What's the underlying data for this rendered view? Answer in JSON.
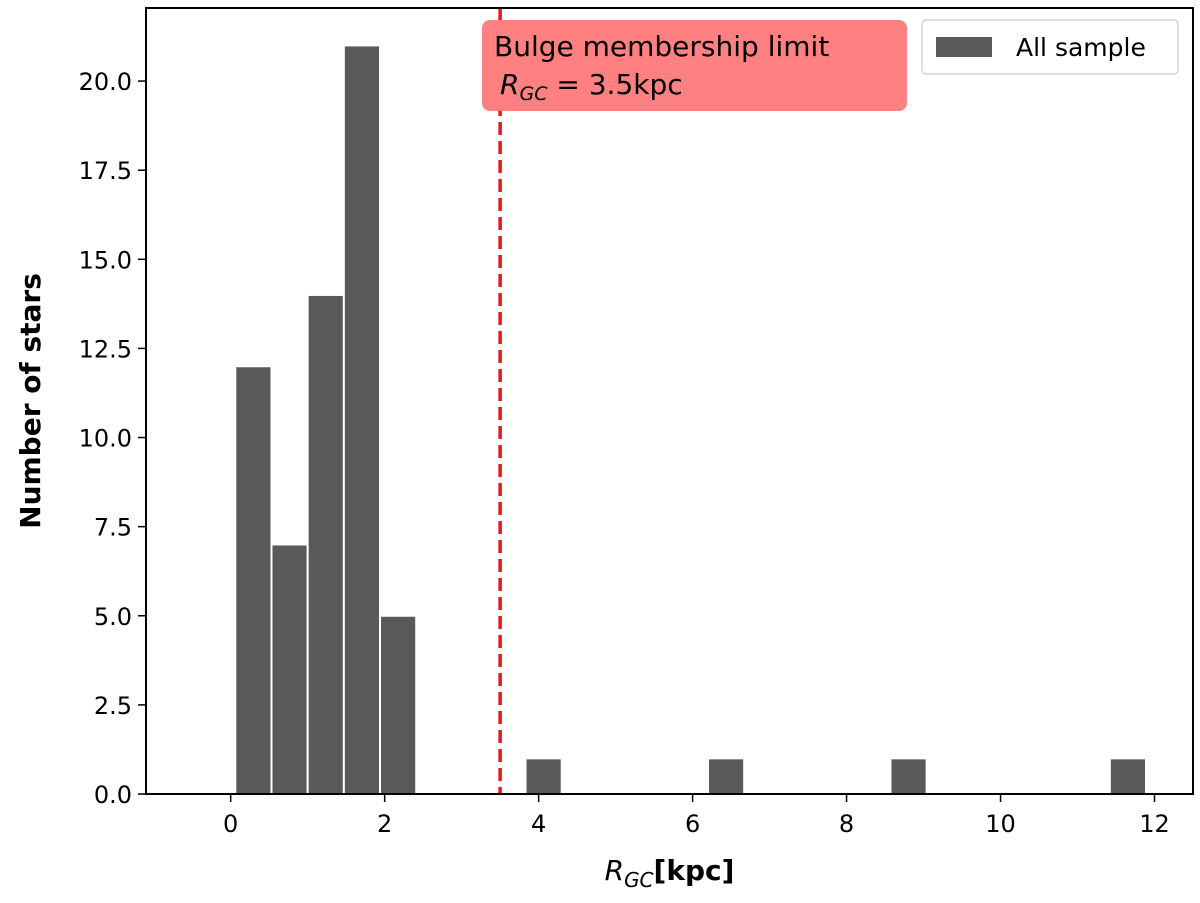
{
  "chart_data": {
    "type": "bar",
    "xlabel_main": "R",
    "xlabel_sub": "GC",
    "xlabel_unit": "[kpc]",
    "ylabel": "Number of stars",
    "xlim": [
      -1.1,
      12.5
    ],
    "ylim": [
      0,
      22.05
    ],
    "xticks": [
      0,
      2,
      4,
      6,
      8,
      10,
      12
    ],
    "yticks": [
      0.0,
      2.5,
      5.0,
      7.5,
      10.0,
      12.5,
      15.0,
      17.5,
      20.0
    ],
    "ytick_labels": [
      "0.0",
      "2.5",
      "5.0",
      "7.5",
      "10.0",
      "12.5",
      "15.0",
      "17.5",
      "20.0"
    ],
    "bar_color": "#595959",
    "bars": [
      {
        "x0": 0.06,
        "x1": 0.53,
        "value": 12
      },
      {
        "x0": 0.53,
        "x1": 1.0,
        "value": 7
      },
      {
        "x0": 1.0,
        "x1": 1.47,
        "value": 14
      },
      {
        "x0": 1.47,
        "x1": 1.94,
        "value": 21
      },
      {
        "x0": 1.94,
        "x1": 2.41,
        "value": 5
      },
      {
        "x0": 3.83,
        "x1": 4.3,
        "value": 1
      },
      {
        "x0": 6.2,
        "x1": 6.67,
        "value": 1
      },
      {
        "x0": 8.57,
        "x1": 9.04,
        "value": 1
      },
      {
        "x0": 11.42,
        "x1": 11.89,
        "value": 1
      }
    ],
    "vline": {
      "x": 3.5,
      "color": "#e31a1c",
      "style": "dashed"
    },
    "annotation": {
      "line1": "Bulge membership limit",
      "line2_main": "R",
      "line2_sub": "GC",
      "line2_rest": " = 3.5kpc",
      "box_color": "#ff8080"
    },
    "legend": {
      "label": "All sample",
      "position": "top-right"
    }
  }
}
